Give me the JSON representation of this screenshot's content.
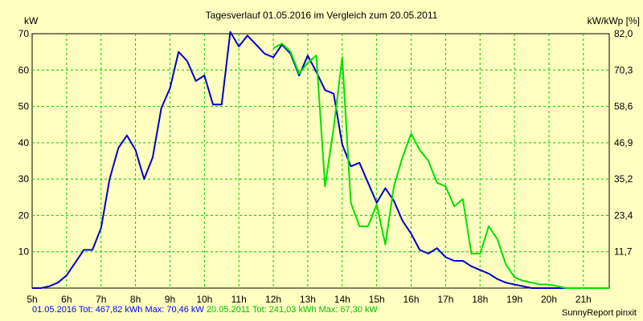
{
  "chart_data": {
    "type": "line",
    "title": "Tagesverlauf 01.05.2016 im Vergleich zum 20.05.2011",
    "ylabel_left": "kW",
    "ylabel_right": "kW/kWp [%]",
    "x_ticks": [
      "5h",
      "6h",
      "7h",
      "8h",
      "9h",
      "10h",
      "11h",
      "12h",
      "13h",
      "14h",
      "15h",
      "16h",
      "17h",
      "18h",
      "19h",
      "20h",
      "21h"
    ],
    "xlim": [
      5,
      21.75
    ],
    "ylim": [
      0,
      70
    ],
    "y_ticks_left": [
      "10",
      "20",
      "30",
      "40",
      "50",
      "60",
      "70"
    ],
    "y_ticks_right": [
      "11,7",
      "23,4",
      "35,2",
      "46,9",
      "58,6",
      "70,3",
      "82,0"
    ],
    "grid": true,
    "series": [
      {
        "name": "01.05.2016",
        "color": "#0000cc",
        "x": [
          5.0,
          5.25,
          5.5,
          5.75,
          6.0,
          6.25,
          6.5,
          6.75,
          7.0,
          7.25,
          7.5,
          7.75,
          8.0,
          8.25,
          8.5,
          8.75,
          9.0,
          9.25,
          9.5,
          9.75,
          10.0,
          10.25,
          10.5,
          10.75,
          11.0,
          11.25,
          11.5,
          11.75,
          12.0,
          12.25,
          12.5,
          12.75,
          13.0,
          13.25,
          13.5,
          13.75,
          14.0,
          14.25,
          14.5,
          14.75,
          15.0,
          15.25,
          15.5,
          15.75,
          16.0,
          16.25,
          16.5,
          16.75,
          17.0,
          17.25,
          17.5,
          17.75,
          18.0,
          18.25,
          18.5,
          18.75,
          19.0,
          19.25,
          19.5,
          19.75,
          20.0,
          20.25,
          20.5,
          20.75,
          21.0,
          21.25,
          21.5,
          21.75
        ],
        "y": [
          0,
          0,
          0.5,
          1.5,
          3.5,
          7,
          10.5,
          10.5,
          16.5,
          30,
          38.5,
          42,
          38,
          30,
          36,
          49.5,
          55,
          65,
          62.5,
          57,
          58.5,
          50.5,
          50.5,
          70.5,
          66.5,
          69.5,
          67,
          64.5,
          63.5,
          67,
          64.5,
          58.5,
          64,
          59.5,
          54.5,
          53.5,
          39.5,
          33.5,
          34.5,
          29,
          23.5,
          27.5,
          24,
          18.5,
          15,
          10.5,
          9.5,
          11,
          8.5,
          7.5,
          7.5,
          6,
          5,
          4,
          2.5,
          1.5,
          1,
          0.5,
          0,
          0,
          0,
          0,
          0,
          0,
          0,
          0,
          0,
          0
        ]
      },
      {
        "name": "20.05.2011",
        "color": "#00e000",
        "x": [
          12.0,
          12.25,
          12.5,
          12.75,
          13.0,
          13.25,
          13.5,
          13.75,
          14.0,
          14.25,
          14.5,
          14.75,
          15.0,
          15.25,
          15.5,
          15.75,
          16.0,
          16.25,
          16.5,
          16.75,
          17.0,
          17.25,
          17.5,
          17.75,
          18.0,
          18.25,
          18.5,
          18.75,
          19.0,
          19.25,
          19.5,
          19.75,
          20.0,
          20.25,
          20.5,
          20.75,
          21.0,
          21.25,
          21.5,
          21.75
        ],
        "y": [
          66,
          67.3,
          65,
          59,
          62,
          64,
          28,
          44,
          63.5,
          23.5,
          17,
          17,
          23,
          12,
          28,
          36,
          42.5,
          38,
          35,
          29,
          28,
          22.5,
          24.5,
          9.5,
          9.5,
          17,
          13.5,
          6.5,
          3,
          2,
          1.5,
          1,
          1,
          0.5,
          0,
          0,
          0,
          0,
          0,
          0
        ]
      }
    ]
  },
  "footer": {
    "series1_text": "01.05.2016 Tot: 467,82 kWh Max: 70,46 kW",
    "series2_text": "20.05.2011 Tot: 241,03 kWh Max: 67,30 kW",
    "credit": "SunnyReport pinxit"
  }
}
